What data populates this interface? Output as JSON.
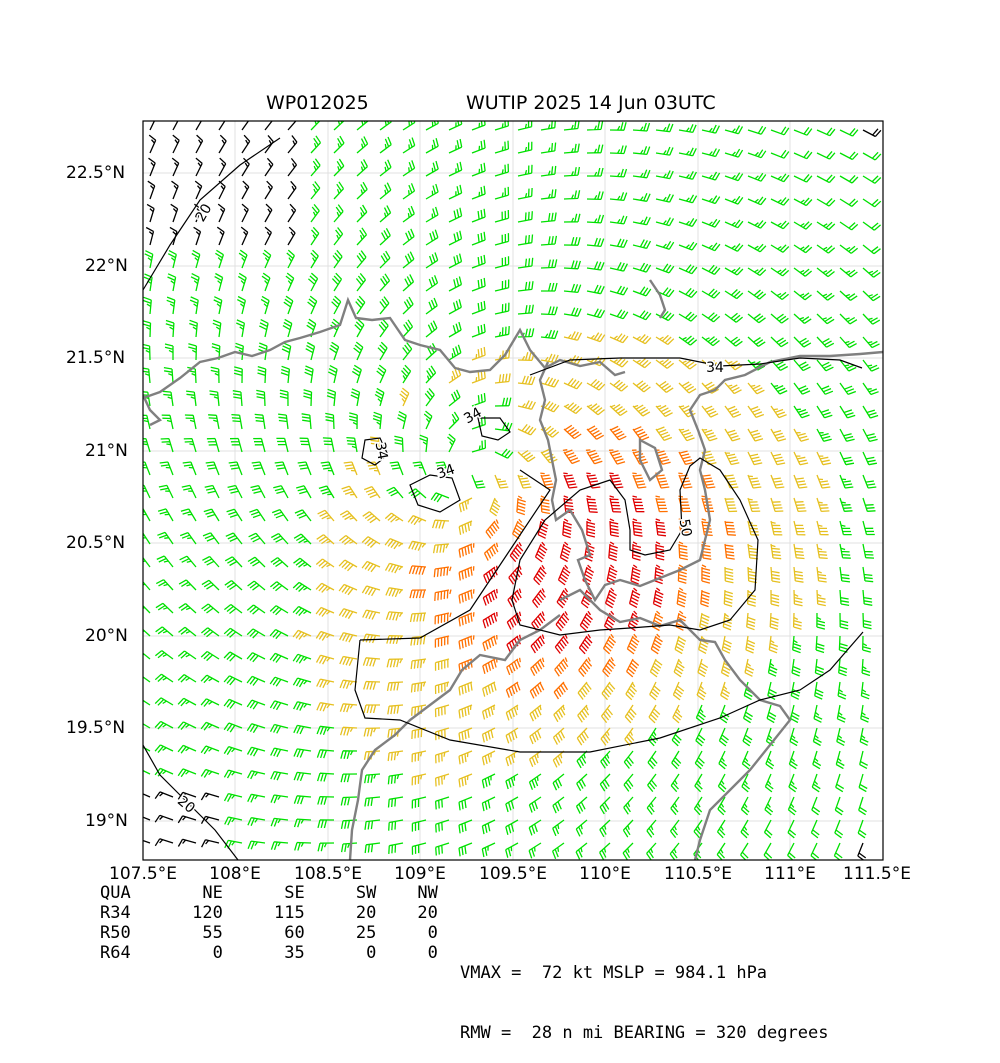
{
  "title": {
    "storm_id": "WP012025",
    "storm_info": "WUTIP 2025 14 Jun 03UTC"
  },
  "map": {
    "lat_ticks": [
      "22.5°N",
      "22°N",
      "21.5°N",
      "21°N",
      "20.5°N",
      "20°N",
      "19.5°N",
      "19°N"
    ],
    "lon_ticks": [
      "107.5°E",
      "108°E",
      "108.5°E",
      "109°E",
      "109.5°E",
      "110°E",
      "110.5°E",
      "111°E",
      "111.5°E"
    ],
    "contour_labels": [
      "20",
      "34",
      "34",
      "34",
      "34",
      "50",
      "20"
    ],
    "barb_colors": {
      "below_20kt": "#000000",
      "kt20_34": "#00e000",
      "kt34_50": "#e6c020",
      "kt50_64": "#ff7000",
      "above_64kt": "#e00000"
    },
    "coastline_color": "#808080",
    "grid": true
  },
  "wind_radii": {
    "header": [
      "QUA",
      "NE",
      "SE",
      "SW",
      "NW"
    ],
    "rows": [
      [
        "R34",
        "120",
        "115",
        "20",
        "20"
      ],
      [
        "R50",
        "55",
        "60",
        "25",
        "0"
      ],
      [
        "R64",
        "0",
        "35",
        "0",
        "0"
      ]
    ]
  },
  "stats": {
    "line1": "VMAX =  72 kt MSLP = 984.1 hPa",
    "line2": "RMW =  28 n mi BEARING = 320 degrees"
  }
}
